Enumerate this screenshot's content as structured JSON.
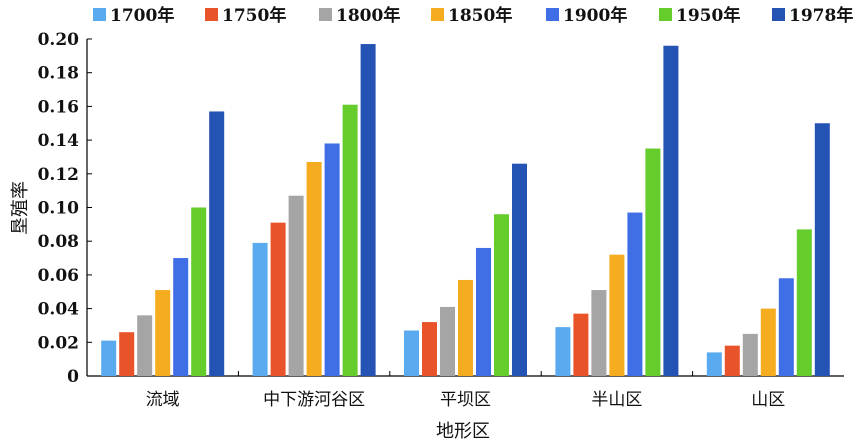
{
  "chart_data": {
    "type": "bar",
    "xlabel": "地形区",
    "ylabel": "垦殖率",
    "ylim": [
      0,
      0.2
    ],
    "yticks": [
      "0",
      "0.02",
      "0.04",
      "0.06",
      "0.08",
      "0.10",
      "0.12",
      "0.14",
      "0.16",
      "0.18",
      "0.20"
    ],
    "categories": [
      "流域",
      "中下游河谷区",
      "平坝区",
      "半山区",
      "山区"
    ],
    "series": [
      {
        "name": "1700年",
        "color": "#5aaaef",
        "values": [
          0.021,
          0.079,
          0.027,
          0.029,
          0.014
        ]
      },
      {
        "name": "1750年",
        "color": "#e9532a",
        "values": [
          0.026,
          0.091,
          0.032,
          0.037,
          0.018
        ]
      },
      {
        "name": "1800年",
        "color": "#a5a5a5",
        "values": [
          0.036,
          0.107,
          0.041,
          0.051,
          0.025
        ]
      },
      {
        "name": "1850年",
        "color": "#f5ac1f",
        "values": [
          0.051,
          0.127,
          0.057,
          0.072,
          0.04
        ]
      },
      {
        "name": "1900年",
        "color": "#3f6ee6",
        "values": [
          0.07,
          0.138,
          0.076,
          0.097,
          0.058
        ]
      },
      {
        "name": "1950年",
        "color": "#64cc2b",
        "values": [
          0.1,
          0.161,
          0.096,
          0.135,
          0.087
        ]
      },
      {
        "name": "1978年",
        "color": "#2453b3",
        "values": [
          0.157,
          0.197,
          0.126,
          0.196,
          0.15
        ]
      }
    ],
    "legend_position": "top",
    "grid": false
  }
}
